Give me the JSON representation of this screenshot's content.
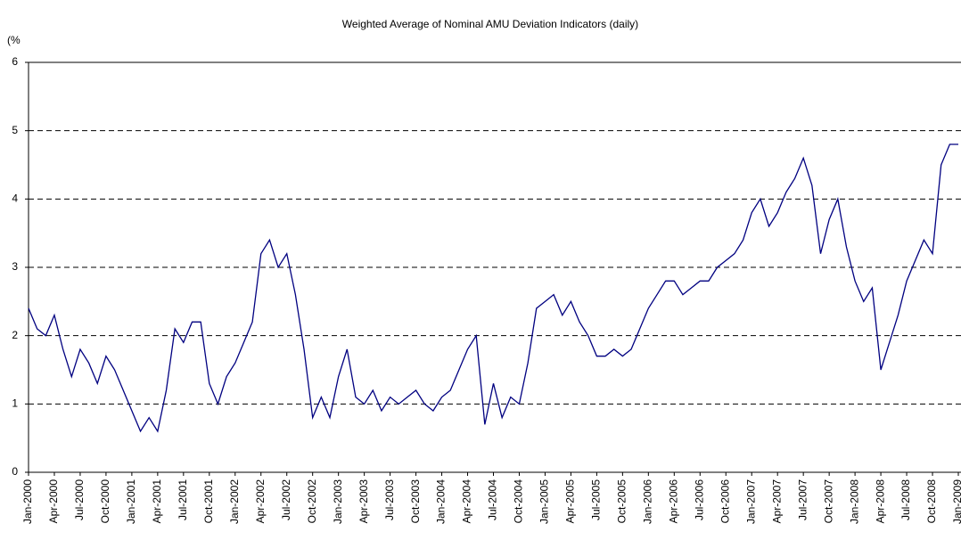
{
  "chart_data": {
    "type": "line",
    "title": "Weighted Average of Nominal AMU Deviation Indicators (daily)",
    "y_unit_label": "(%",
    "categories": [
      "Jan-2000",
      null,
      null,
      "Apr-2000",
      null,
      null,
      "Jul-2000",
      null,
      null,
      "Oct-2000",
      null,
      null,
      "Jan-2001",
      null,
      null,
      "Apr-2001",
      null,
      null,
      "Jul-2001",
      null,
      null,
      "Oct-2001",
      null,
      null,
      "Jan-2002",
      null,
      null,
      "Apr-2002",
      null,
      null,
      "Jul-2002",
      null,
      null,
      "Oct-2002",
      null,
      null,
      "Jan-2003",
      null,
      null,
      "Apr-2003",
      null,
      null,
      "Jul-2003",
      null,
      null,
      "Oct-2003",
      null,
      null,
      "Jan-2004",
      null,
      null,
      "Apr-2004",
      null,
      null,
      "Jul-2004",
      null,
      null,
      "Oct-2004",
      null,
      null,
      "Jan-2005",
      null,
      null,
      "Apr-2005",
      null,
      null,
      "Jul-2005",
      null,
      null,
      "Oct-2005",
      null,
      null,
      "Jan-2006",
      null,
      null,
      "Apr-2006",
      null,
      null,
      "Jul-2006",
      null,
      null,
      "Oct-2006",
      null,
      null,
      "Jan-2007",
      null,
      null,
      "Apr-2007",
      null,
      null,
      "Jul-2007",
      null,
      null,
      "Oct-2007",
      null,
      null,
      "Jan-2008",
      null,
      null,
      "Apr-2008",
      null,
      null,
      "Jul-2008",
      null,
      null,
      "Oct-2008",
      null,
      null,
      "Jan-2009"
    ],
    "series": [
      {
        "name": "Weighted Average",
        "color": "#000080",
        "values": [
          2.4,
          2.1,
          2.0,
          2.3,
          1.8,
          1.4,
          1.8,
          1.6,
          1.3,
          1.7,
          1.5,
          1.2,
          0.9,
          0.6,
          0.8,
          0.6,
          1.2,
          2.1,
          1.9,
          2.2,
          2.2,
          1.3,
          1.0,
          1.4,
          1.6,
          1.9,
          2.2,
          3.2,
          3.4,
          3.0,
          3.2,
          2.6,
          1.8,
          0.8,
          1.1,
          0.8,
          1.4,
          1.8,
          1.1,
          1.0,
          1.2,
          0.9,
          1.1,
          1.0,
          1.1,
          1.2,
          1.0,
          0.9,
          1.1,
          1.2,
          1.5,
          1.8,
          2.0,
          0.7,
          1.3,
          0.8,
          1.1,
          1.0,
          1.6,
          2.4,
          2.5,
          2.6,
          2.3,
          2.5,
          2.2,
          2.0,
          1.7,
          1.7,
          1.8,
          1.7,
          1.8,
          2.1,
          2.4,
          2.6,
          2.8,
          2.8,
          2.6,
          2.7,
          2.8,
          2.8,
          3.0,
          3.1,
          3.2,
          3.4,
          3.8,
          4.0,
          3.6,
          3.8,
          4.1,
          4.3,
          4.6,
          4.2,
          3.2,
          3.7,
          4.0,
          3.3,
          2.8,
          2.5,
          2.7,
          1.5,
          1.9,
          2.3,
          2.8,
          3.1,
          3.4,
          3.2,
          4.5,
          4.8,
          4.8
        ]
      }
    ],
    "ylim": [
      0,
      6
    ],
    "yticks": [
      0,
      1,
      2,
      3,
      4,
      5,
      6
    ],
    "grid": true
  }
}
